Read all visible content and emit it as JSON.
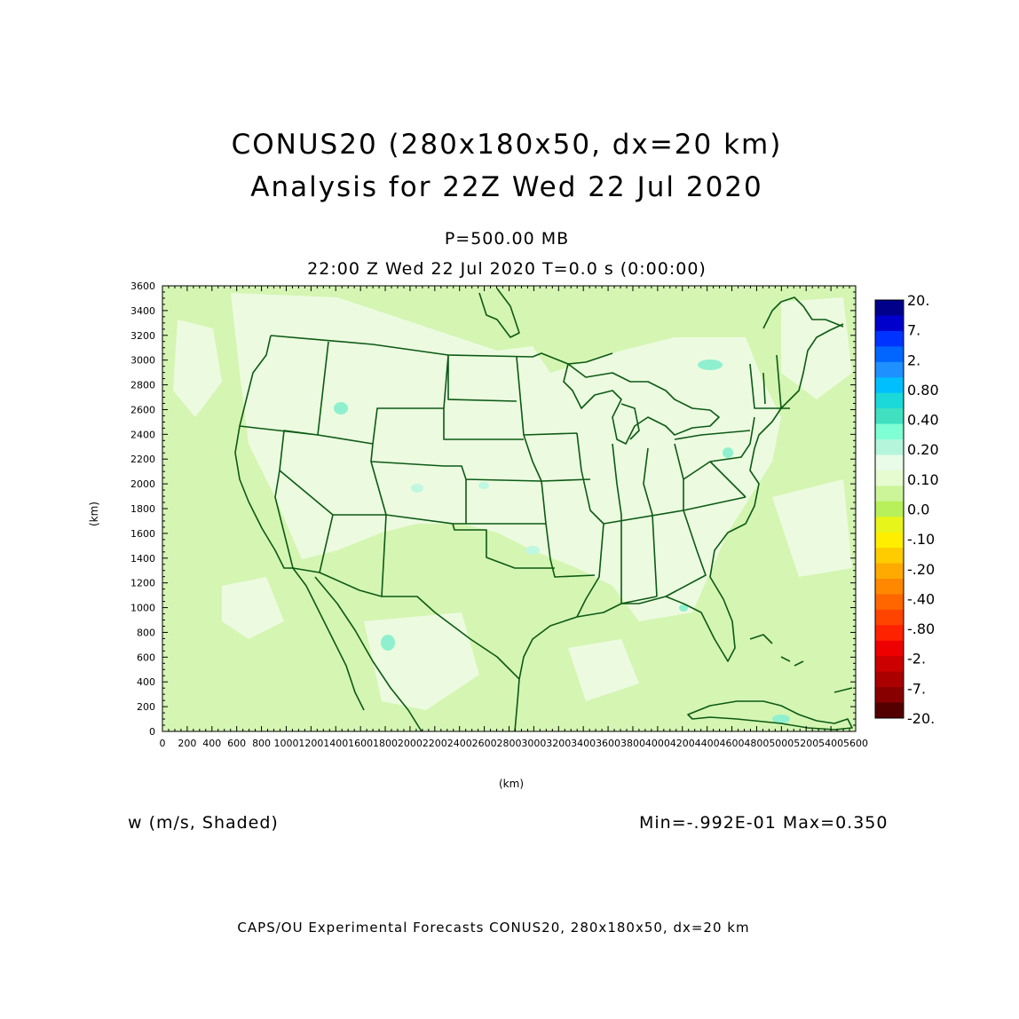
{
  "title": {
    "line1": "CONUS20 (280x180x50, dx=20 km)",
    "line2": "Analysis for 22Z Wed 22 Jul 2020"
  },
  "level_label": "P=500.00 MB",
  "time_label": "22:00 Z Wed 22 Jul 2020    T=0.0 s (0:00:00)",
  "field_label": "w (m/s, Shaded)",
  "minmax_label": "Min=-.992E-01 Max=0.350",
  "footer": "CAPS/OU Experimental Forecasts  CONUS20, 280x180x50, dx=20 km",
  "axes": {
    "x_unit": "(km)",
    "y_unit": "(km)",
    "x_ticks": [
      "0",
      "200",
      "400",
      "600",
      "800",
      "1000",
      "1200",
      "1400",
      "1600",
      "1800",
      "2000",
      "2200",
      "2400",
      "2600",
      "2800",
      "3000",
      "3200",
      "3400",
      "3600",
      "3800",
      "4000",
      "4200",
      "4400",
      "4600",
      "4800",
      "5000",
      "5200",
      "5400",
      "5600"
    ],
    "y_ticks": [
      "0",
      "200",
      "400",
      "600",
      "800",
      "1000",
      "1200",
      "1400",
      "1600",
      "1800",
      "2000",
      "2200",
      "2400",
      "2600",
      "2800",
      "3000",
      "3200",
      "3400",
      "3600"
    ],
    "x_range": [
      0,
      5600
    ],
    "y_range": [
      0,
      3600
    ]
  },
  "colorbar": {
    "labels": [
      "20.",
      "7.",
      "2.",
      "0.80",
      "0.40",
      "0.20",
      "0.10",
      "0.0",
      "-.10",
      "-.20",
      "-.40",
      "-.80",
      "-2.",
      "-7.",
      "-20."
    ],
    "colors": [
      "#00008b",
      "#0000cd",
      "#0033ff",
      "#0066ff",
      "#1e90ff",
      "#00bfff",
      "#1cd9d9",
      "#40e0c0",
      "#7fffd4",
      "#b4f5dc",
      "#e8fce8",
      "#e6fbd0",
      "#ccf59a",
      "#b7f05a",
      "#e8f51a",
      "#ffee00",
      "#ffcc00",
      "#ffaa00",
      "#ff8800",
      "#ff6600",
      "#ff4400",
      "#ff2200",
      "#ee0000",
      "#cc0000",
      "#aa0000",
      "#880000",
      "#550000"
    ]
  },
  "map": {
    "background_color": "#d5f5b3",
    "boundary_color": "#0b5a14"
  }
}
